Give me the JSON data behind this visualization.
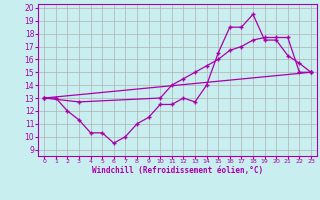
{
  "xlabel": "Windchill (Refroidissement éolien,°C)",
  "bg_color": "#c8eef0",
  "grid_color": "#b0b0b0",
  "line_color": "#aa00aa",
  "xlim": [
    -0.5,
    23.5
  ],
  "ylim": [
    9,
    20
  ],
  "xticks": [
    0,
    1,
    2,
    3,
    4,
    5,
    6,
    7,
    8,
    9,
    10,
    11,
    12,
    13,
    14,
    15,
    16,
    17,
    18,
    19,
    20,
    21,
    22,
    23
  ],
  "yticks": [
    9,
    10,
    11,
    12,
    13,
    14,
    15,
    16,
    17,
    18,
    19,
    20
  ],
  "line1_x": [
    0,
    1,
    2,
    3,
    4,
    5,
    6,
    7,
    8,
    9,
    10,
    11,
    12,
    13,
    14,
    15,
    16,
    17,
    18,
    19,
    20,
    21,
    22,
    23
  ],
  "line1_y": [
    13,
    13,
    12,
    11.3,
    10.3,
    10.3,
    9.5,
    10.0,
    11.0,
    11.5,
    12.5,
    12.5,
    13.0,
    12.7,
    14.0,
    16.5,
    18.5,
    18.5,
    19.5,
    17.5,
    17.5,
    16.3,
    15.7,
    15.0
  ],
  "line2_x": [
    0,
    3,
    10,
    11,
    12,
    13,
    14,
    15,
    16,
    17,
    18,
    19,
    20,
    21,
    22,
    23
  ],
  "line2_y": [
    13,
    12.7,
    13.0,
    14.0,
    14.5,
    15.0,
    15.5,
    16.0,
    16.7,
    17.0,
    17.5,
    17.7,
    17.7,
    17.7,
    15.0,
    15.0
  ],
  "line3_x": [
    0,
    23
  ],
  "line3_y": [
    13,
    15
  ]
}
